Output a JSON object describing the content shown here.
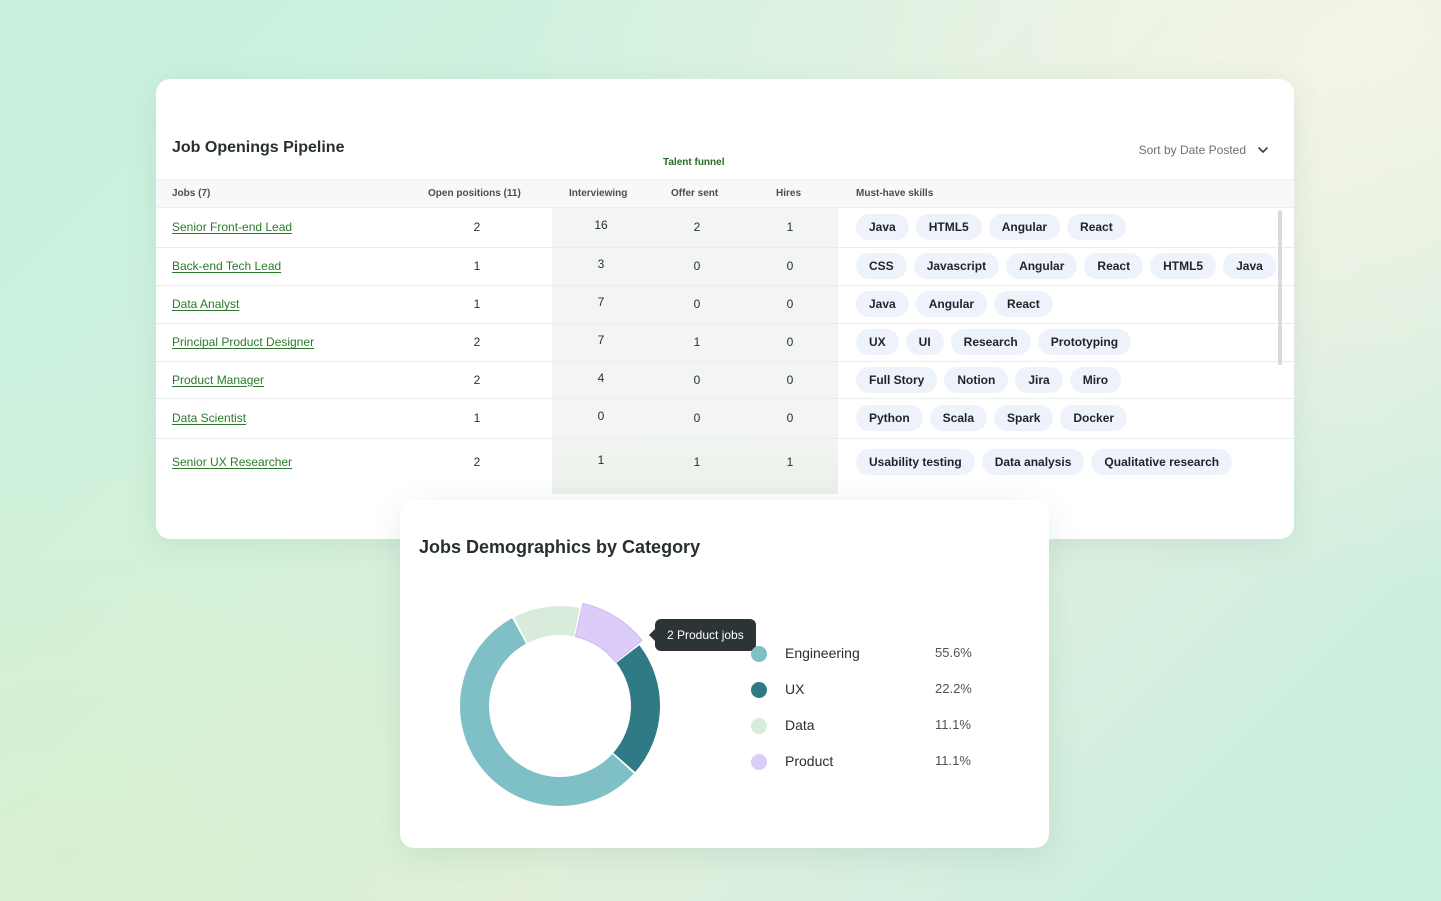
{
  "pipeline": {
    "title": "Job Openings Pipeline",
    "funnel_label": "Talent funnel",
    "sort_label": "Sort by Date Posted",
    "columns": {
      "jobs": "Jobs (7)",
      "open_positions": "Open positions (11)",
      "interviewing": "Interviewing",
      "offer_sent": "Offer sent",
      "hires": "Hires",
      "skills": "Must-have skills"
    },
    "rows": [
      {
        "job": "Senior Front-end Lead",
        "open": "2",
        "interviewing": "16",
        "offer": "2",
        "hires": "1",
        "skills": [
          "Java",
          "HTML5",
          "Angular",
          "React"
        ]
      },
      {
        "job": "Back-end Tech Lead",
        "open": "1",
        "interviewing": "3",
        "offer": "0",
        "hires": "0",
        "skills": [
          "CSS",
          "Javascript",
          "Angular",
          "React",
          "HTML5",
          "Java"
        ]
      },
      {
        "job": "Data Analyst",
        "open": "1",
        "interviewing": "7",
        "offer": "0",
        "hires": "0",
        "skills": [
          "Java",
          "Angular",
          "React"
        ]
      },
      {
        "job": "Principal Product Designer",
        "open": "2",
        "interviewing": "7",
        "offer": "1",
        "hires": "0",
        "skills": [
          "UX",
          "UI",
          "Research",
          "Prototyping"
        ]
      },
      {
        "job": "Product Manager",
        "open": "2",
        "interviewing": "4",
        "offer": "0",
        "hires": "0",
        "skills": [
          "Full Story",
          "Notion",
          "Jira",
          "Miro"
        ]
      },
      {
        "job": "Data Scientist",
        "open": "1",
        "interviewing": "0",
        "offer": "0",
        "hires": "0",
        "skills": [
          "Python",
          "Scala",
          "Spark",
          "Docker"
        ]
      },
      {
        "job": "Senior UX Researcher",
        "open": "2",
        "interviewing": "1",
        "offer": "1",
        "hires": "1",
        "skills": [
          "Usability testing",
          "Data analysis",
          "Qualitative research"
        ]
      }
    ]
  },
  "demographics": {
    "title": "Jobs Demographics by Category",
    "tooltip": "2 Product jobs",
    "highlighted": "Product",
    "categories": [
      {
        "label": "Engineering",
        "pct": "55.6%",
        "value": 55.6,
        "color": "#7fbfc6"
      },
      {
        "label": "UX",
        "pct": "22.2%",
        "value": 22.2,
        "color": "#2f7a84"
      },
      {
        "label": "Data",
        "pct": "11.1%",
        "value": 11.1,
        "color": "#d9ecdc"
      },
      {
        "label": "Product",
        "pct": "11.1%",
        "value": 11.1,
        "color": "#dcccfa"
      }
    ]
  },
  "colors": {
    "link": "#2b7a2b",
    "funnel_label": "#2a6a2a",
    "skill_pill_bg": "#eef2fb",
    "tooltip_bg": "#2c3436"
  },
  "icons": {
    "sort": "chevron-down-icon"
  }
}
